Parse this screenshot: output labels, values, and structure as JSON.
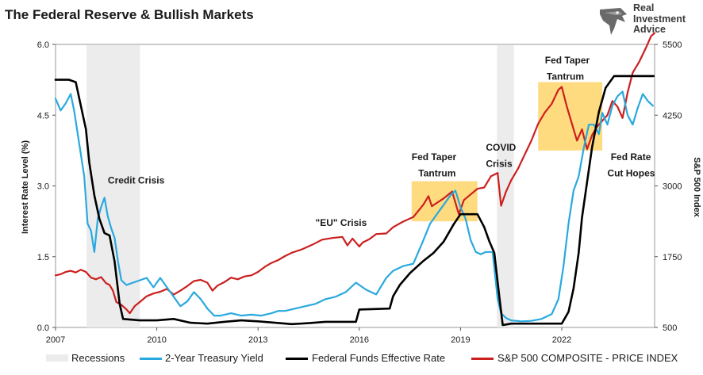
{
  "header": {
    "title": "The Federal Reserve & Bullish Markets",
    "brand_lines": [
      "Real",
      "Investment",
      "Advice"
    ],
    "brand_logo": "eagle-head-icon"
  },
  "colors": {
    "recession": "#ececec",
    "treasury": "#29a9df",
    "fed_funds": "#000000",
    "sp500": "#cc1f1f",
    "highlight": "#ffd66e"
  },
  "legend": {
    "recessions": "Recessions",
    "treasury": "2-Year Treasury Yield",
    "fed_funds": "Federal Funds Effective Rate",
    "sp500": "S&P 500 COMPOSITE - PRICE INDEX"
  },
  "chart_data": {
    "type": "line",
    "title": "The Federal Reserve & Bullish Markets",
    "ylabel": "Interest Rate Level (%)",
    "y2label": "S&P 500 Index",
    "xlim": [
      2007,
      2024.75
    ],
    "ylim": [
      0,
      6
    ],
    "y2lim": [
      500,
      5500
    ],
    "x_ticks": [
      "2007",
      "2010",
      "2013",
      "2016",
      "2019",
      "2022"
    ],
    "y_ticks": [
      "0.0",
      "1.5",
      "3.0",
      "4.5",
      "6.0"
    ],
    "y2_ticks": [
      "500",
      "1750",
      "3000",
      "4250",
      "5500"
    ],
    "recessions": [
      [
        2007.92,
        2009.5
      ],
      [
        2020.08,
        2020.58
      ]
    ],
    "highlights": [
      {
        "x": [
          2017.55,
          2019.5
        ],
        "y": [
          2.25,
          3.1
        ]
      },
      {
        "x": [
          2021.3,
          2023.2
        ],
        "y": [
          3.75,
          5.2
        ]
      }
    ],
    "annotations": [
      {
        "text": "Credit Crisis",
        "x": 2008.55,
        "y": 3.05
      },
      {
        "text": "\"EU\" Crisis",
        "x": 2014.7,
        "y": 2.15
      },
      {
        "text": "Fed Taper",
        "x": 2017.55,
        "y": 3.55
      },
      {
        "text": "Tantrum",
        "x": 2017.75,
        "y": 3.2
      },
      {
        "text": "COVID",
        "x": 2019.75,
        "y": 3.75
      },
      {
        "text": "Crisis",
        "x": 2019.75,
        "y": 3.4
      },
      {
        "text": "Fed Taper",
        "x": 2021.5,
        "y": 5.6
      },
      {
        "text": "Tantrum",
        "x": 2021.55,
        "y": 5.25
      },
      {
        "text": "Fed Rate",
        "x": 2023.45,
        "y": 3.55
      },
      {
        "text": "Cut Hopes",
        "x": 2023.35,
        "y": 3.2
      }
    ],
    "series": [
      {
        "name": "2-Year Treasury Yield",
        "axis": "left",
        "x": [
          2007.0,
          2007.15,
          2007.3,
          2007.45,
          2007.55,
          2007.7,
          2007.85,
          2007.95,
          2008.05,
          2008.15,
          2008.25,
          2008.35,
          2008.45,
          2008.55,
          2008.65,
          2008.75,
          2008.85,
          2008.95,
          2009.1,
          2009.3,
          2009.5,
          2009.7,
          2009.9,
          2010.1,
          2010.3,
          2010.5,
          2010.7,
          2010.9,
          2011.1,
          2011.3,
          2011.5,
          2011.7,
          2011.9,
          2012.2,
          2012.5,
          2012.8,
          2013.1,
          2013.4,
          2013.6,
          2013.8,
          2014.1,
          2014.4,
          2014.7,
          2015.0,
          2015.3,
          2015.6,
          2015.9,
          2016.2,
          2016.5,
          2016.8,
          2017.0,
          2017.3,
          2017.6,
          2017.9,
          2018.1,
          2018.3,
          2018.5,
          2018.7,
          2018.85,
          2019.0,
          2019.15,
          2019.3,
          2019.45,
          2019.6,
          2019.75,
          2019.95,
          2020.1,
          2020.2,
          2020.35,
          2020.5,
          2020.8,
          2021.1,
          2021.4,
          2021.7,
          2021.9,
          2022.05,
          2022.2,
          2022.35,
          2022.5,
          2022.65,
          2022.8,
          2022.95,
          2023.1,
          2023.2,
          2023.35,
          2023.5,
          2023.65,
          2023.8,
          2023.95,
          2024.1,
          2024.25,
          2024.4,
          2024.55,
          2024.7
        ],
        "y": [
          4.85,
          4.6,
          4.75,
          4.95,
          4.6,
          3.9,
          3.2,
          2.2,
          2.05,
          1.6,
          2.3,
          2.55,
          2.75,
          2.35,
          2.1,
          1.9,
          1.4,
          1.0,
          0.9,
          0.95,
          1.0,
          1.05,
          0.85,
          1.05,
          0.85,
          0.65,
          0.45,
          0.55,
          0.75,
          0.6,
          0.4,
          0.25,
          0.25,
          0.3,
          0.25,
          0.27,
          0.25,
          0.3,
          0.35,
          0.35,
          0.4,
          0.45,
          0.5,
          0.6,
          0.65,
          0.75,
          0.95,
          0.8,
          0.7,
          1.05,
          1.2,
          1.3,
          1.35,
          1.85,
          2.2,
          2.4,
          2.6,
          2.8,
          2.9,
          2.55,
          2.3,
          1.85,
          1.6,
          1.55,
          1.6,
          1.6,
          0.6,
          0.3,
          0.2,
          0.15,
          0.13,
          0.14,
          0.18,
          0.28,
          0.6,
          1.3,
          2.2,
          2.9,
          3.2,
          3.8,
          4.3,
          4.3,
          4.1,
          4.55,
          4.3,
          4.7,
          4.9,
          5.0,
          4.5,
          4.3,
          4.65,
          4.95,
          4.8,
          4.7
        ]
      },
      {
        "name": "Federal Funds Effective Rate",
        "axis": "left",
        "x": [
          2007.0,
          2007.4,
          2007.6,
          2007.75,
          2007.9,
          2008.0,
          2008.15,
          2008.3,
          2008.45,
          2008.6,
          2008.75,
          2008.9,
          2009.0,
          2009.5,
          2010.0,
          2010.5,
          2011.0,
          2011.5,
          2012.0,
          2012.5,
          2013.0,
          2013.5,
          2014.0,
          2014.5,
          2015.0,
          2015.9,
          2016.0,
          2016.9,
          2017.0,
          2017.2,
          2017.5,
          2017.9,
          2018.2,
          2018.5,
          2018.8,
          2019.0,
          2019.5,
          2019.7,
          2019.85,
          2020.0,
          2020.15,
          2020.25,
          2020.5,
          2021.0,
          2021.5,
          2022.0,
          2022.2,
          2022.35,
          2022.5,
          2022.6,
          2022.75,
          2022.9,
          2023.1,
          2023.3,
          2023.55,
          2024.0,
          2024.5,
          2024.72
        ],
        "y": [
          5.25,
          5.25,
          5.2,
          4.7,
          4.2,
          3.5,
          2.8,
          2.3,
          2.0,
          1.95,
          1.4,
          0.5,
          0.18,
          0.15,
          0.15,
          0.18,
          0.1,
          0.08,
          0.12,
          0.15,
          0.13,
          0.1,
          0.07,
          0.09,
          0.12,
          0.12,
          0.38,
          0.4,
          0.66,
          0.9,
          1.15,
          1.41,
          1.58,
          1.82,
          2.19,
          2.4,
          2.4,
          2.13,
          1.83,
          1.58,
          0.65,
          0.05,
          0.08,
          0.08,
          0.08,
          0.08,
          0.33,
          0.83,
          1.58,
          2.33,
          3.08,
          3.83,
          4.57,
          5.08,
          5.33,
          5.33,
          5.33,
          5.33
        ]
      },
      {
        "name": "S&P 500 COMPOSITE - PRICE INDEX",
        "axis": "right",
        "x": [
          2007.0,
          2007.15,
          2007.3,
          2007.45,
          2007.6,
          2007.75,
          2007.9,
          2008.05,
          2008.2,
          2008.35,
          2008.5,
          2008.6,
          2008.7,
          2008.8,
          2008.95,
          2009.1,
          2009.2,
          2009.35,
          2009.5,
          2009.7,
          2009.9,
          2010.1,
          2010.3,
          2010.5,
          2010.7,
          2010.9,
          2011.1,
          2011.3,
          2011.5,
          2011.65,
          2011.8,
          2012.0,
          2012.2,
          2012.4,
          2012.6,
          2012.8,
          2013.0,
          2013.2,
          2013.4,
          2013.6,
          2013.8,
          2014.0,
          2014.3,
          2014.6,
          2014.9,
          2015.2,
          2015.5,
          2015.65,
          2015.8,
          2016.0,
          2016.1,
          2016.3,
          2016.5,
          2016.8,
          2017.0,
          2017.3,
          2017.6,
          2017.9,
          2018.05,
          2018.15,
          2018.3,
          2018.5,
          2018.75,
          2018.95,
          2019.1,
          2019.3,
          2019.5,
          2019.7,
          2019.9,
          2020.1,
          2020.2,
          2020.35,
          2020.5,
          2020.7,
          2020.9,
          2021.1,
          2021.3,
          2021.5,
          2021.7,
          2021.9,
          2022.0,
          2022.15,
          2022.3,
          2022.45,
          2022.6,
          2022.75,
          2022.9,
          2023.05,
          2023.2,
          2023.35,
          2023.5,
          2023.65,
          2023.8,
          2023.95,
          2024.1,
          2024.3,
          2024.5,
          2024.65,
          2024.75
        ],
        "y": [
          1420,
          1440,
          1480,
          1500,
          1470,
          1520,
          1480,
          1380,
          1350,
          1390,
          1280,
          1250,
          1150,
          950,
          900,
          820,
          750,
          880,
          950,
          1050,
          1100,
          1130,
          1180,
          1080,
          1150,
          1230,
          1320,
          1340,
          1290,
          1150,
          1240,
          1300,
          1380,
          1350,
          1400,
          1420,
          1480,
          1570,
          1640,
          1690,
          1760,
          1820,
          1880,
          1960,
          2050,
          2080,
          2100,
          1950,
          2070,
          1930,
          2000,
          2060,
          2150,
          2160,
          2270,
          2370,
          2450,
          2670,
          2820,
          2640,
          2700,
          2780,
          2900,
          2500,
          2750,
          2850,
          2950,
          2970,
          3170,
          3230,
          2650,
          2900,
          3100,
          3300,
          3550,
          3800,
          4100,
          4300,
          4450,
          4700,
          4750,
          4400,
          4100,
          3800,
          4000,
          3650,
          3900,
          4050,
          4150,
          4250,
          4500,
          4400,
          4200,
          4650,
          5000,
          5200,
          5450,
          5650,
          5700
        ]
      }
    ]
  }
}
